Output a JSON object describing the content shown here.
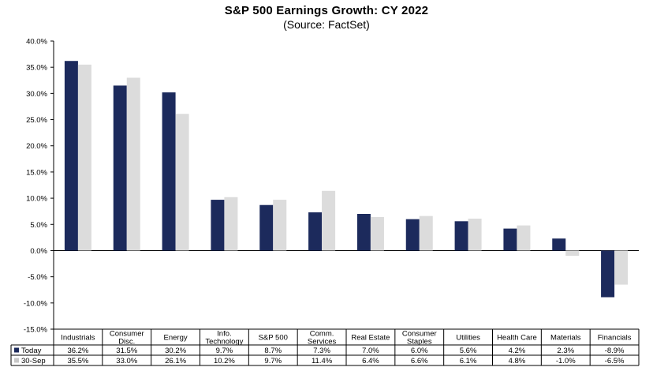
{
  "chart_data": {
    "type": "bar",
    "title": "S&P 500 Earnings Growth: CY 2022",
    "subtitle": "(Source: FactSet)",
    "xlabel": "",
    "ylabel": "",
    "ylim": [
      -15,
      40
    ],
    "yticks": [
      40,
      35,
      30,
      25,
      20,
      15,
      10,
      5,
      0,
      -5,
      -10,
      -15
    ],
    "ytick_labels": [
      "40.0%",
      "35.0%",
      "30.0%",
      "25.0%",
      "20.0%",
      "15.0%",
      "10.0%",
      "5.0%",
      "0.0%",
      "-5.0%",
      "-10.0%",
      "-15.0%"
    ],
    "grid": false,
    "legend": "bottom-left data table",
    "categories": [
      [
        "Industrials"
      ],
      [
        "Consumer",
        "Disc."
      ],
      [
        "Energy"
      ],
      [
        "Info.",
        "Technology"
      ],
      [
        "S&P 500"
      ],
      [
        "Comm.",
        "Services"
      ],
      [
        "Real Estate"
      ],
      [
        "Consumer",
        "Staples"
      ],
      [
        "Utilities"
      ],
      [
        "Health Care"
      ],
      [
        "Materials"
      ],
      [
        "Financials"
      ]
    ],
    "series": [
      {
        "name": "Today",
        "color": "#1c2a5c",
        "values": [
          36.2,
          31.5,
          30.2,
          9.7,
          8.7,
          7.3,
          7.0,
          6.0,
          5.6,
          4.2,
          2.3,
          -8.9
        ],
        "labels": [
          "36.2%",
          "31.5%",
          "30.2%",
          "9.7%",
          "8.7%",
          "7.3%",
          "7.0%",
          "6.0%",
          "5.6%",
          "4.2%",
          "2.3%",
          "-8.9%"
        ]
      },
      {
        "name": "30-Sep",
        "color": "#dcdcdc",
        "values": [
          35.5,
          33.0,
          26.1,
          10.2,
          9.7,
          11.4,
          6.4,
          6.6,
          6.1,
          4.8,
          -1.0,
          -6.5
        ],
        "labels": [
          "35.5%",
          "33.0%",
          "26.1%",
          "10.2%",
          "9.7%",
          "11.4%",
          "6.4%",
          "6.6%",
          "6.1%",
          "4.8%",
          "-1.0%",
          "-6.5%"
        ]
      }
    ]
  }
}
